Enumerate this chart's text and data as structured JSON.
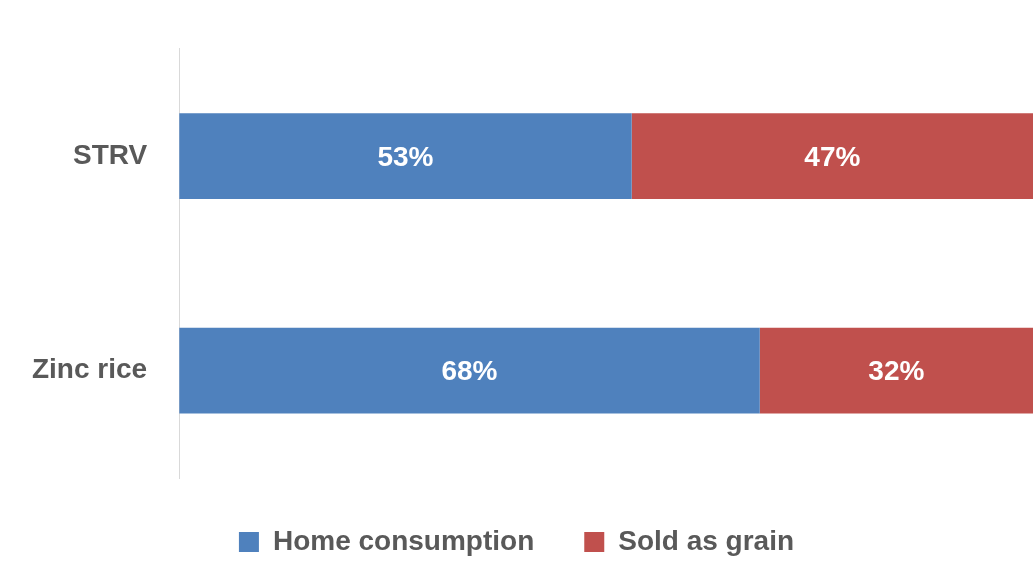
{
  "chart_data": {
    "type": "bar",
    "orientation": "horizontal",
    "stacked": true,
    "categories": [
      "STRV",
      "Zinc rice"
    ],
    "series": [
      {
        "name": "Home consumption",
        "color": "#4f81bd",
        "values": [
          53,
          68
        ],
        "value_labels": [
          "53%",
          "68%"
        ]
      },
      {
        "name": "Sold as grain",
        "color": "#c0504d",
        "values": [
          47,
          32
        ],
        "value_labels": [
          "47%",
          "32%"
        ]
      }
    ],
    "xlim": [
      0,
      100
    ],
    "tick_labels": "y",
    "legend": "bottom"
  }
}
